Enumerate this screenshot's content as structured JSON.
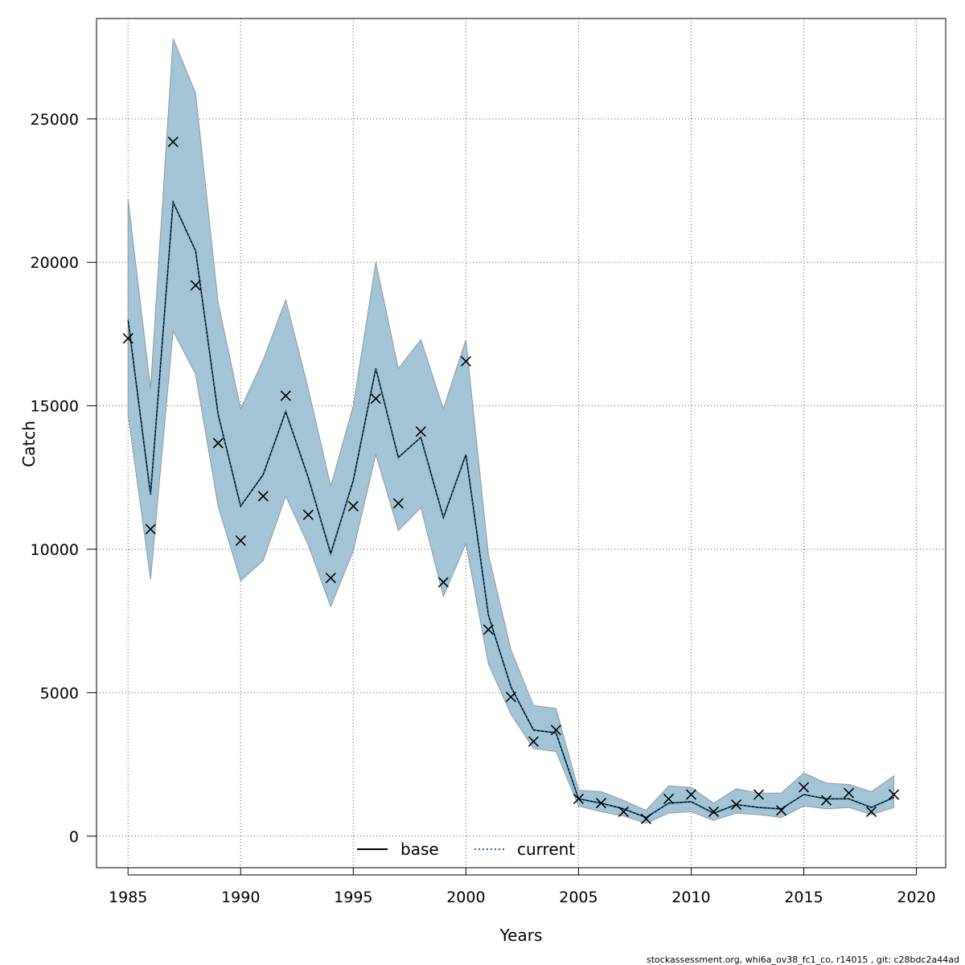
{
  "chart_data": {
    "type": "line",
    "xlabel": "Years",
    "ylabel": "Catch",
    "xlim": [
      1983.6,
      2021.3
    ],
    "ylim": [
      -1100,
      28500
    ],
    "x_ticks": [
      1985,
      1990,
      1995,
      2000,
      2005,
      2010,
      2015,
      2020
    ],
    "y_ticks": [
      0,
      5000,
      10000,
      15000,
      20000,
      25000
    ],
    "x_tick_labels": [
      "1985",
      "1990",
      "1995",
      "2000",
      "2005",
      "2010",
      "2015",
      "2020"
    ],
    "y_tick_labels": [
      "0",
      "5000",
      "10000",
      "15000",
      "20000",
      "25000"
    ],
    "grid": true,
    "legend": {
      "position": "bottom-center",
      "entries": [
        "base",
        "current"
      ]
    },
    "colors": {
      "band": "#a3c4d6",
      "band_edge": "#8a9aa6",
      "base": "#000000",
      "current": "#1f6e9e"
    },
    "years": [
      1985,
      1986,
      1987,
      1988,
      1989,
      1990,
      1991,
      1992,
      1993,
      1994,
      1995,
      1996,
      1997,
      1998,
      1999,
      2000,
      2001,
      2002,
      2003,
      2004,
      2005,
      2006,
      2007,
      2008,
      2009,
      2010,
      2011,
      2012,
      2013,
      2014,
      2015,
      2016,
      2017,
      2018,
      2019
    ],
    "series": [
      {
        "name": "base",
        "style": "solid",
        "values": [
          18000,
          11900,
          22100,
          20400,
          14700,
          11500,
          12600,
          14800,
          12500,
          9850,
          12400,
          16300,
          13200,
          13900,
          11100,
          13300,
          7700,
          5200,
          3700,
          3600,
          1300,
          1150,
          950,
          650,
          1150,
          1200,
          800,
          1100,
          1000,
          950,
          1450,
          1300,
          1300,
          1000,
          1350
        ]
      },
      {
        "name": "current",
        "style": "dotted",
        "values": [
          18000,
          11900,
          22100,
          20400,
          14700,
          11500,
          12600,
          14800,
          12500,
          9850,
          12400,
          16300,
          13200,
          13900,
          11100,
          13300,
          7700,
          5200,
          3700,
          3600,
          1300,
          1150,
          950,
          650,
          1150,
          1200,
          800,
          1100,
          1000,
          950,
          1450,
          1300,
          1300,
          1000,
          1350
        ]
      },
      {
        "name": "",
        "type": "band",
        "lower": [
          14700,
          8950,
          17600,
          16100,
          11500,
          8900,
          9600,
          11850,
          10150,
          8000,
          9950,
          13300,
          10650,
          11450,
          8350,
          10200,
          6000,
          4250,
          3050,
          2950,
          1050,
          850,
          700,
          450,
          800,
          850,
          550,
          800,
          750,
          650,
          1050,
          950,
          1000,
          750,
          1000
        ],
        "upper": [
          22200,
          15600,
          27800,
          25900,
          18600,
          14900,
          16600,
          18700,
          15600,
          12200,
          15000,
          20000,
          16300,
          17300,
          14900,
          17300,
          9800,
          6500,
          4550,
          4450,
          1600,
          1550,
          1250,
          900,
          1750,
          1700,
          1150,
          1650,
          1500,
          1500,
          2200,
          1850,
          1800,
          1550,
          2100
        ]
      },
      {
        "name": "",
        "type": "observed",
        "marker": "x",
        "values": [
          17350,
          10700,
          24200,
          19200,
          13700,
          10300,
          11850,
          15350,
          11200,
          9000,
          11500,
          15250,
          11600,
          14100,
          8850,
          16550,
          7200,
          4850,
          3300,
          3700,
          1300,
          1150,
          850,
          600,
          1300,
          1450,
          850,
          1100,
          1450,
          900,
          1700,
          1250,
          1500,
          850,
          1450
        ]
      }
    ]
  },
  "footer": "stockassessment.org, whi6a_ov38_fc1_co, r14015 , git: c28bdc2a44ad"
}
